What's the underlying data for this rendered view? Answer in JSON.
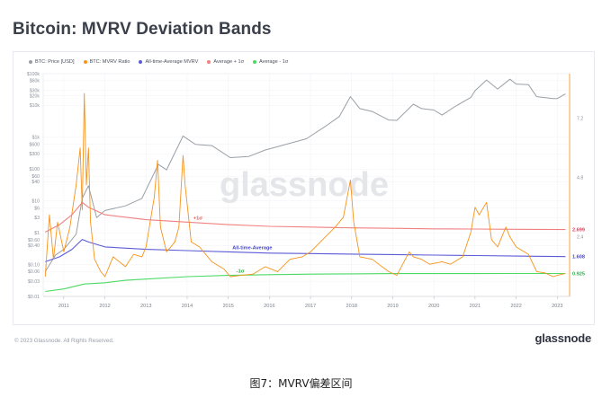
{
  "title": "Bitcoin: MVRV Deviation Bands",
  "footer": {
    "copyright": "© 2023 Glassnode. All Rights Reserved.",
    "brand": "glassnode",
    "watermark": "glassnode"
  },
  "caption": "图7：MVRV偏差区间",
  "colors": {
    "price": "#9aa0a6",
    "mvrv": "#f7931a",
    "mean": "#5b5bd6",
    "upper": "#f08080",
    "lower": "#4cd964",
    "text": "#3a3f4a"
  },
  "chart_data": {
    "type": "line",
    "title": "Bitcoin: MVRV Deviation Bands",
    "x": {
      "range": [
        2010.5,
        2023.3
      ],
      "ticks": [
        2011,
        2012,
        2013,
        2014,
        2015,
        2016,
        2017,
        2018,
        2019,
        2020,
        2021,
        2022,
        2023
      ],
      "tick_labels": [
        "2011",
        "2012",
        "2013",
        "2014",
        "2015",
        "2016",
        "2017",
        "2018",
        "2019",
        "2020",
        "2021",
        "2022",
        "2023"
      ]
    },
    "y_left": {
      "scale": "log",
      "range": [
        0.01,
        100000
      ],
      "tick_values": [
        100000,
        60000,
        30000,
        20000,
        10000,
        1000,
        600,
        300,
        100,
        60,
        40,
        10,
        6,
        3,
        1,
        0.6,
        0.4,
        0.1,
        0.06,
        0.03,
        0.01
      ],
      "tick_labels": [
        "$100k",
        "$60k",
        "$30k",
        "$20k",
        "$10k",
        "$1k",
        "$600",
        "$300",
        "$100",
        "$60",
        "$40",
        "$10",
        "$6",
        "$3",
        "$1",
        "$0.60",
        "$0.40",
        "$0.10",
        "$0.06",
        "$0.03",
        "$0.01"
      ]
    },
    "y_right": {
      "scale": "linear",
      "range": [
        0,
        9
      ],
      "tick_values": [
        2.4,
        4.8,
        7.2
      ],
      "tick_labels": [
        "2.4",
        "4.8",
        "7.2"
      ]
    },
    "legend": [
      "BTC: Price [USD]",
      "BTC: MVRV Ratio",
      "All-time-Average MVRV",
      "Average + 1σ",
      "Average - 1σ"
    ],
    "legend_position": "top-left",
    "annotations": [
      {
        "text": "+1σ",
        "series": "Average + 1σ"
      },
      {
        "text": "All-time-Average",
        "series": "All-time-Average MVRV"
      },
      {
        "text": "-1σ",
        "series": "Average - 1σ"
      }
    ],
    "series": [
      {
        "name": "BTC: Price [USD]",
        "axis": "left",
        "x": [
          2010.55,
          2010.8,
          2011.0,
          2011.3,
          2011.45,
          2011.6,
          2011.8,
          2012.0,
          2012.5,
          2012.9,
          2013.3,
          2013.5,
          2013.9,
          2014.2,
          2014.6,
          2015.05,
          2015.5,
          2015.9,
          2016.5,
          2016.9,
          2017.4,
          2017.7,
          2017.97,
          2018.2,
          2018.5,
          2018.9,
          2019.1,
          2019.5,
          2019.7,
          2020.0,
          2020.2,
          2020.5,
          2020.9,
          2021.0,
          2021.28,
          2021.55,
          2021.85,
          2022.0,
          2022.3,
          2022.5,
          2022.9,
          2023.0,
          2023.2
        ],
        "y": [
          0.06,
          0.2,
          0.3,
          0.9,
          12,
          30,
          3,
          5,
          7,
          12,
          140,
          95,
          1100,
          600,
          550,
          230,
          250,
          400,
          650,
          900,
          2400,
          4500,
          19000,
          8000,
          6500,
          3500,
          3400,
          11000,
          8000,
          7200,
          5000,
          9000,
          18000,
          29000,
          63000,
          33000,
          67000,
          47000,
          45000,
          19000,
          16500,
          16500,
          23000
        ]
      },
      {
        "name": "BTC: MVRV Ratio",
        "axis": "right",
        "x": [
          2010.55,
          2010.65,
          2010.75,
          2010.85,
          2011.0,
          2011.15,
          2011.3,
          2011.4,
          2011.45,
          2011.5,
          2011.55,
          2011.6,
          2011.65,
          2011.75,
          2011.9,
          2012.0,
          2012.2,
          2012.5,
          2012.7,
          2012.9,
          2013.0,
          2013.2,
          2013.28,
          2013.35,
          2013.5,
          2013.7,
          2013.8,
          2013.9,
          2013.95,
          2014.1,
          2014.3,
          2014.6,
          2014.9,
          2015.05,
          2015.3,
          2015.6,
          2015.9,
          2016.2,
          2016.5,
          2016.8,
          2017.0,
          2017.3,
          2017.6,
          2017.8,
          2017.97,
          2018.05,
          2018.2,
          2018.5,
          2018.9,
          2019.1,
          2019.4,
          2019.5,
          2019.7,
          2019.9,
          2020.2,
          2020.4,
          2020.7,
          2020.9,
          2021.0,
          2021.1,
          2021.28,
          2021.4,
          2021.55,
          2021.75,
          2021.85,
          2022.0,
          2022.3,
          2022.5,
          2022.7,
          2022.9,
          2023.0,
          2023.2
        ],
        "y": [
          0.8,
          3.3,
          1.5,
          3.0,
          1.8,
          2.8,
          4.5,
          6.0,
          3.5,
          8.2,
          4.5,
          6.0,
          3.0,
          1.5,
          1.0,
          0.8,
          1.6,
          1.2,
          1.7,
          1.6,
          2.0,
          4.0,
          5.5,
          2.8,
          1.8,
          2.2,
          2.8,
          5.7,
          4.5,
          2.2,
          2.0,
          1.4,
          1.1,
          0.8,
          0.85,
          0.9,
          1.2,
          1.0,
          1.5,
          1.6,
          1.8,
          2.3,
          2.8,
          3.2,
          4.7,
          3.0,
          1.6,
          1.5,
          1.0,
          0.85,
          1.8,
          1.6,
          1.5,
          1.3,
          1.4,
          1.3,
          1.6,
          2.6,
          3.6,
          3.3,
          3.8,
          2.3,
          2.0,
          2.8,
          2.4,
          2.0,
          1.7,
          1.0,
          0.95,
          0.8,
          0.85,
          0.93
        ]
      },
      {
        "name": "Average + 1σ",
        "axis": "right",
        "x": [
          2010.55,
          2010.9,
          2011.2,
          2011.45,
          2011.6,
          2012.0,
          2013.0,
          2014.0,
          2015.0,
          2016.0,
          2017.0,
          2018.0,
          2019.0,
          2020.0,
          2021.0,
          2022.0,
          2023.2
        ],
        "y": [
          2.6,
          2.9,
          3.3,
          3.8,
          3.6,
          3.3,
          3.1,
          3.0,
          2.9,
          2.83,
          2.8,
          2.77,
          2.75,
          2.73,
          2.72,
          2.71,
          2.699
        ]
      },
      {
        "name": "All-time-Average MVRV",
        "axis": "right",
        "x": [
          2010.55,
          2010.9,
          2011.2,
          2011.45,
          2011.6,
          2012.0,
          2013.0,
          2014.0,
          2015.0,
          2016.0,
          2017.0,
          2018.0,
          2019.0,
          2020.0,
          2021.0,
          2022.0,
          2023.2
        ],
        "y": [
          1.4,
          1.6,
          1.9,
          2.3,
          2.2,
          2.0,
          1.9,
          1.85,
          1.8,
          1.75,
          1.73,
          1.71,
          1.69,
          1.67,
          1.65,
          1.63,
          1.608
        ]
      },
      {
        "name": "Average - 1σ",
        "axis": "right",
        "x": [
          2010.55,
          2011.0,
          2011.5,
          2012.0,
          2012.5,
          2013.0,
          2014.0,
          2015.0,
          2016.0,
          2017.0,
          2018.0,
          2019.0,
          2020.0,
          2021.0,
          2022.0,
          2023.2
        ],
        "y": [
          0.2,
          0.3,
          0.5,
          0.55,
          0.65,
          0.7,
          0.8,
          0.85,
          0.88,
          0.9,
          0.91,
          0.92,
          0.92,
          0.92,
          0.925,
          0.925
        ]
      }
    ],
    "end_labels": [
      {
        "series": "Average + 1σ",
        "text": "2.699"
      },
      {
        "series": "All-time-Average MVRV",
        "text": "1.608"
      },
      {
        "series": "Average - 1σ",
        "text": "0.925"
      }
    ]
  }
}
